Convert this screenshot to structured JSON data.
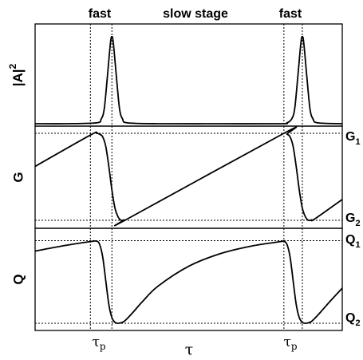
{
  "chart_data": [
    {
      "type": "line",
      "panel": "top",
      "ylabel": "|A|",
      "ylabel_superscript": "2",
      "xlim": [
        0,
        1
      ],
      "ylim": [
        0,
        1
      ],
      "series": [
        {
          "x": [
            0.0,
            0.1,
            0.2,
            0.215,
            0.225,
            0.235,
            0.245,
            0.25,
            0.255,
            0.265,
            0.275,
            0.285,
            0.3,
            0.4,
            0.6,
            0.8,
            0.82,
            0.835,
            0.845,
            0.855,
            0.865,
            0.87,
            0.875,
            0.885,
            0.895,
            0.905,
            0.92,
            1.0
          ],
          "y": [
            0.0,
            0.0,
            0.01,
            0.05,
            0.16,
            0.5,
            0.87,
            0.95,
            0.87,
            0.5,
            0.16,
            0.05,
            0.01,
            0.0,
            0.0,
            0.0,
            0.01,
            0.05,
            0.16,
            0.5,
            0.87,
            0.95,
            0.87,
            0.5,
            0.16,
            0.05,
            0.01,
            0.0
          ]
        }
      ],
      "header_labels": [
        "fast",
        "slow stage",
        "fast"
      ],
      "grid": false
    },
    {
      "type": "line",
      "panel": "middle",
      "ylabel": "G",
      "right_labels": [
        {
          "text": "G",
          "sub": "1",
          "value": 1.0
        },
        {
          "text": "G",
          "sub": "2",
          "value": 0.0
        }
      ],
      "xlim": [
        0,
        1
      ],
      "ylim": [
        0,
        1
      ],
      "series": [
        {
          "x": [
            0.0,
            0.18,
            0.2,
            0.21,
            0.22,
            0.23,
            0.24,
            0.25,
            0.26,
            0.27,
            0.28,
            0.29,
            0.3,
            0.81,
            0.82,
            0.83,
            0.84,
            0.85,
            0.86,
            0.87,
            0.88,
            0.89,
            0.9,
            0.91,
            1.0
          ],
          "y": [
            0.62,
            0.98,
            1.0,
            0.99,
            0.96,
            0.85,
            0.62,
            0.35,
            0.14,
            0.04,
            0.0,
            0.005,
            0.015,
            1.0,
            0.99,
            0.96,
            0.85,
            0.62,
            0.35,
            0.14,
            0.04,
            0.0,
            0.005,
            0.015,
            0.24
          ]
        }
      ],
      "grid": false
    },
    {
      "type": "line",
      "panel": "bottom",
      "ylabel": "Q",
      "xlabel": "τ",
      "x_ticks": [
        {
          "text": "τ",
          "sub": "p",
          "value": 0.25
        },
        {
          "text": "τ",
          "sub": "p",
          "value": 0.87
        }
      ],
      "right_labels": [
        {
          "text": "Q",
          "sub": "1",
          "value": 0.87
        },
        {
          "text": "Q",
          "sub": "2",
          "value": 0.0
        }
      ],
      "xlim": [
        0,
        1
      ],
      "ylim": [
        0,
        1
      ],
      "series": [
        {
          "x": [
            0.0,
            0.1,
            0.18,
            0.2,
            0.21,
            0.22,
            0.23,
            0.24,
            0.25,
            0.26,
            0.27,
            0.28,
            0.29,
            0.3,
            0.32,
            0.35,
            0.4,
            0.5,
            0.6,
            0.7,
            0.8,
            0.81,
            0.82,
            0.83,
            0.84,
            0.85,
            0.86,
            0.87,
            0.88,
            0.89,
            0.9,
            0.91,
            0.93,
            0.96,
            1.0
          ],
          "y": [
            0.76,
            0.82,
            0.86,
            0.865,
            0.83,
            0.7,
            0.45,
            0.2,
            0.06,
            0.01,
            0.0,
            0.005,
            0.02,
            0.05,
            0.12,
            0.23,
            0.39,
            0.6,
            0.73,
            0.81,
            0.86,
            0.865,
            0.83,
            0.7,
            0.45,
            0.2,
            0.06,
            0.01,
            0.0,
            0.005,
            0.02,
            0.05,
            0.12,
            0.23,
            0.37
          ]
        }
      ],
      "grid": false
    }
  ],
  "markers": {
    "vertical_lines_x": [
      0.18,
      0.25,
      0.81,
      0.87
    ]
  }
}
